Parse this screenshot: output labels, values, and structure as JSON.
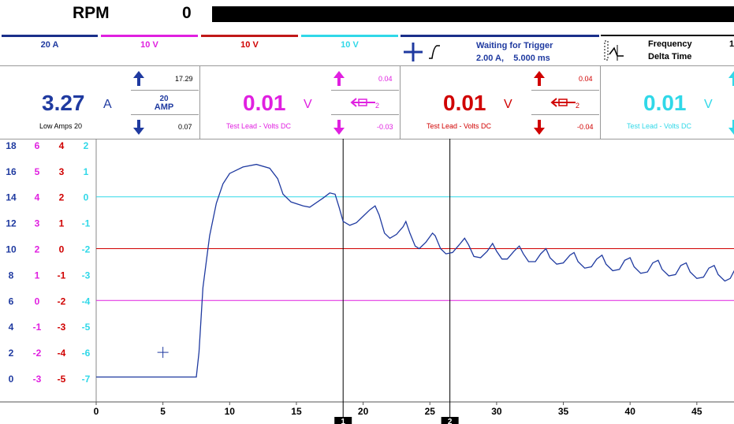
{
  "header": {
    "rpm_label": "RPM",
    "rpm_value": "0"
  },
  "channels": [
    {
      "label": "20 A",
      "color": "#1f3aa0"
    },
    {
      "label": "10 V",
      "color": "#e020e0"
    },
    {
      "label": "10 V",
      "color": "#d00000"
    },
    {
      "label": "10 V",
      "color": "#30d8e8"
    }
  ],
  "trigger": {
    "title": "Waiting for Trigger",
    "settings": "2.00 A,    5.000 ms"
  },
  "frequency_panel": {
    "frequency_label": "Frequency",
    "delta_label": "Delta Time",
    "frequency_value": "1"
  },
  "meters": [
    {
      "value": "3.27",
      "unit": "A",
      "description": "Low Amps 20",
      "max": "17.29",
      "min": "0.07",
      "range_label": "20 AMP",
      "color": "#1f3aa0"
    },
    {
      "value": "0.01",
      "unit": "V",
      "description": "Test Lead - Volts DC",
      "max": "0.04",
      "min": "-0.03",
      "color": "#e020e0"
    },
    {
      "value": "0.01",
      "unit": "V",
      "description": "Test Lead - Volts DC",
      "max": "0.04",
      "min": "-0.04",
      "color": "#d00000"
    },
    {
      "value": "0.01",
      "unit": "V",
      "description": "Test Lead - Volts DC",
      "color": "#30d8e8"
    }
  ],
  "scope": {
    "x_ticks": [
      "0",
      "5",
      "10",
      "15",
      "20",
      "25",
      "30",
      "35",
      "40",
      "45"
    ],
    "y_axes": [
      {
        "color": "#1f3aa0",
        "ticks": [
          "18",
          "16",
          "14",
          "12",
          "10",
          "8",
          "6",
          "4",
          "2",
          "0"
        ]
      },
      {
        "color": "#e020e0",
        "ticks": [
          "6",
          "5",
          "4",
          "3",
          "2",
          "1",
          "0",
          "-1",
          "-2",
          "-3"
        ]
      },
      {
        "color": "#d00000",
        "ticks": [
          "4",
          "3",
          "2",
          "1",
          "0",
          "-1",
          "-2",
          "-3",
          "-4",
          "-5"
        ]
      },
      {
        "color": "#30d8e8",
        "ticks": [
          "2",
          "1",
          "0",
          "-1",
          "-2",
          "-3",
          "-4",
          "-5",
          "-6",
          "-7"
        ]
      }
    ],
    "cursors": [
      {
        "label": "1",
        "x_ms": 18.5
      },
      {
        "label": "2",
        "x_ms": 26.5
      }
    ],
    "reference_lines": [
      {
        "color": "#30d8e8",
        "value_amps": 14
      },
      {
        "color": "#d00000",
        "value_amps": 10
      },
      {
        "color": "#e020e0",
        "value_amps": 6
      }
    ],
    "trace_color": "#1f3aa0",
    "trace": [
      [
        0,
        0.1
      ],
      [
        7.5,
        0.1
      ],
      [
        7.7,
        2
      ],
      [
        8,
        7
      ],
      [
        8.5,
        11
      ],
      [
        9,
        13.5
      ],
      [
        9.5,
        15
      ],
      [
        10,
        15.8
      ],
      [
        11,
        16.3
      ],
      [
        12,
        16.5
      ],
      [
        13,
        16.2
      ],
      [
        13.6,
        15.4
      ],
      [
        14,
        14.2
      ],
      [
        14.6,
        13.6
      ],
      [
        15.5,
        13.3
      ],
      [
        16,
        13.2
      ],
      [
        17,
        13.9
      ],
      [
        17.5,
        14.3
      ],
      [
        17.9,
        14.2
      ],
      [
        18.2,
        13.2
      ],
      [
        18.5,
        12.1
      ],
      [
        19,
        11.8
      ],
      [
        19.5,
        12.0
      ],
      [
        20,
        12.5
      ],
      [
        20.5,
        13.0
      ],
      [
        20.9,
        13.3
      ],
      [
        21.2,
        12.6
      ],
      [
        21.6,
        11.2
      ],
      [
        22,
        10.8
      ],
      [
        22.5,
        11.1
      ],
      [
        23,
        11.7
      ],
      [
        23.2,
        12.1
      ],
      [
        23.5,
        11.2
      ],
      [
        23.9,
        10.2
      ],
      [
        24.2,
        10.0
      ],
      [
        24.7,
        10.5
      ],
      [
        25.2,
        11.2
      ],
      [
        25.4,
        11.0
      ],
      [
        25.8,
        10.0
      ],
      [
        26.2,
        9.6
      ],
      [
        26.7,
        9.7
      ],
      [
        27.2,
        10.3
      ],
      [
        27.6,
        10.8
      ],
      [
        27.9,
        10.3
      ],
      [
        28.3,
        9.4
      ],
      [
        28.8,
        9.3
      ],
      [
        29.3,
        9.8
      ],
      [
        29.7,
        10.4
      ],
      [
        30,
        9.8
      ],
      [
        30.4,
        9.2
      ],
      [
        30.8,
        9.2
      ],
      [
        31.3,
        9.8
      ],
      [
        31.7,
        10.2
      ],
      [
        32,
        9.6
      ],
      [
        32.4,
        9.0
      ],
      [
        32.9,
        9.0
      ],
      [
        33.3,
        9.6
      ],
      [
        33.7,
        10.0
      ],
      [
        34,
        9.3
      ],
      [
        34.5,
        8.8
      ],
      [
        35,
        8.9
      ],
      [
        35.5,
        9.5
      ],
      [
        35.8,
        9.7
      ],
      [
        36.1,
        9.0
      ],
      [
        36.6,
        8.5
      ],
      [
        37.1,
        8.6
      ],
      [
        37.5,
        9.2
      ],
      [
        37.9,
        9.5
      ],
      [
        38.2,
        8.8
      ],
      [
        38.7,
        8.3
      ],
      [
        39.2,
        8.4
      ],
      [
        39.6,
        9.1
      ],
      [
        40,
        9.3
      ],
      [
        40.3,
        8.6
      ],
      [
        40.8,
        8.1
      ],
      [
        41.3,
        8.2
      ],
      [
        41.7,
        8.9
      ],
      [
        42.1,
        9.1
      ],
      [
        42.4,
        8.4
      ],
      [
        42.9,
        7.9
      ],
      [
        43.4,
        8.0
      ],
      [
        43.8,
        8.7
      ],
      [
        44.2,
        8.9
      ],
      [
        44.5,
        8.2
      ],
      [
        45,
        7.7
      ],
      [
        45.5,
        7.8
      ],
      [
        45.9,
        8.5
      ],
      [
        46.3,
        8.7
      ],
      [
        46.6,
        8.0
      ],
      [
        47.1,
        7.5
      ],
      [
        47.5,
        7.7
      ],
      [
        47.8,
        8.3
      ],
      [
        48,
        8.5
      ]
    ],
    "marker": {
      "x_ms": 5,
      "value_amps": 2.0
    }
  }
}
